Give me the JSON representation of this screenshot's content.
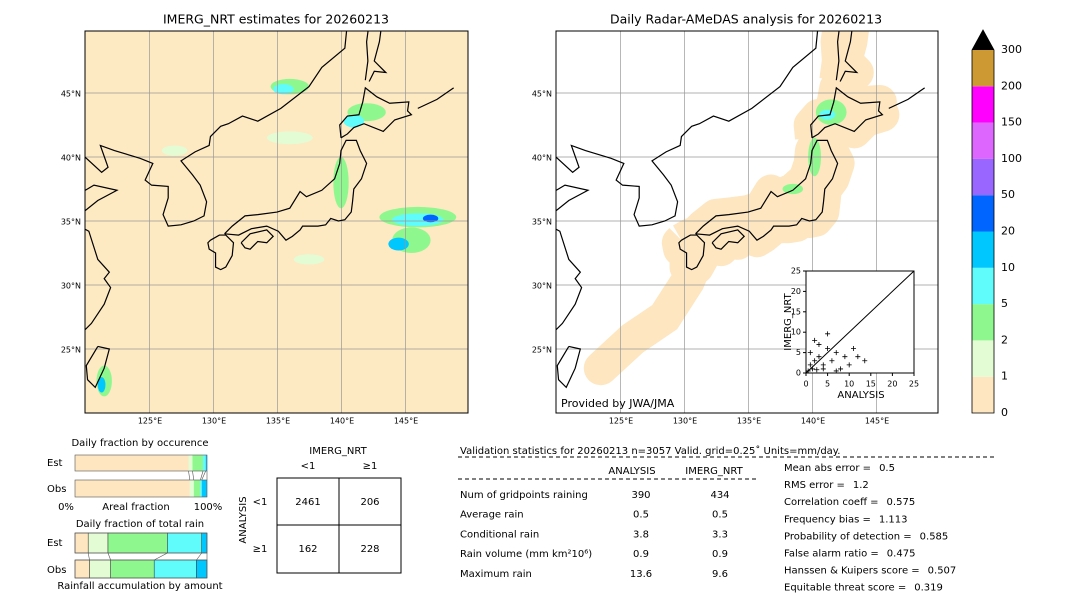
{
  "map_left": {
    "title": "IMERG_NRT estimates for 20260213",
    "lat_labels": [
      "45°N",
      "40°N",
      "35°N",
      "30°N",
      "25°N"
    ],
    "lon_labels": [
      "125°E",
      "130°E",
      "135°E",
      "140°E",
      "145°E"
    ]
  },
  "map_right": {
    "title": "Daily Radar-AMeDAS analysis for 20260213",
    "lat_labels": [
      "45°N",
      "40°N",
      "35°N",
      "30°N",
      "25°N"
    ],
    "lon_labels": [
      "125°E",
      "130°E",
      "135°E",
      "140°E",
      "145°E"
    ],
    "credit": "Provided by JWA/JMA"
  },
  "inset": {
    "type": "scatter",
    "xlabel": "ANALYSIS",
    "ylabel": "IMERG_NRT",
    "xlim": [
      0,
      25
    ],
    "ylim": [
      0,
      25
    ],
    "xticks": [
      0,
      5,
      10,
      15,
      20,
      25
    ],
    "yticks": [
      0,
      5,
      10,
      15,
      20,
      25
    ],
    "x": [
      0.5,
      1,
      1.5,
      2,
      2.5,
      3,
      4,
      5,
      6,
      7,
      8,
      9,
      10,
      11,
      12,
      13.6,
      3,
      5,
      2,
      7,
      1,
      4
    ],
    "y": [
      0.5,
      2,
      1,
      3,
      0.8,
      4,
      2,
      6,
      3,
      5,
      1,
      4,
      2,
      6,
      4,
      3,
      7,
      9.6,
      8,
      0.5,
      5,
      1
    ]
  },
  "colorbar": {
    "levels": [
      0,
      1,
      2,
      5,
      10,
      20,
      50,
      100,
      150,
      200,
      300
    ],
    "colors": [
      "#fde6c0",
      "#e4fcd4",
      "#8ef88e",
      "#60fcfc",
      "#00c8ff",
      "#0064ff",
      "#9966ff",
      "#dd66ff",
      "#ff00ff",
      "#cc9933"
    ]
  },
  "fraction_by_occurrence": {
    "title": "Daily fraction by occurence",
    "row_labels": [
      "Est",
      "Obs"
    ],
    "est": [
      0.86,
      0.03,
      0.08,
      0.02,
      0.01
    ],
    "obs": [
      0.87,
      0.03,
      0.05,
      0.01,
      0.04
    ],
    "axis_left": "0%",
    "axis_label": "Areal fraction",
    "axis_right": "100%"
  },
  "fraction_by_amount": {
    "title": "Daily fraction of total rain",
    "row_labels": [
      "Est",
      "Obs"
    ],
    "est": [
      0.1,
      0.15,
      0.45,
      0.26,
      0.04
    ],
    "obs": [
      0.11,
      0.16,
      0.33,
      0.32,
      0.08
    ],
    "axis_label": "Rainfall accumulation by amount"
  },
  "contingency": {
    "title": "IMERG_NRT",
    "col_labels": [
      "<1",
      "≥1"
    ],
    "row_title": "ANALYSIS",
    "row_labels": [
      "<1",
      "≥1"
    ],
    "cells": [
      [
        2461,
        206
      ],
      [
        162,
        228
      ]
    ]
  },
  "validation": {
    "title": "Validation statistics for 20260213  n=3057 Valid. grid=0.25˚ Units=mm/day.",
    "col_labels": [
      "ANALYSIS",
      "IMERG_NRT"
    ],
    "rows": [
      {
        "label": "Num of gridpoints raining",
        "analysis": 390,
        "imerg": 434
      },
      {
        "label": "Average rain",
        "analysis": 0.5,
        "imerg": 0.5
      },
      {
        "label": "Conditional rain",
        "analysis": 3.8,
        "imerg": 3.3
      },
      {
        "label": "Rain volume (mm km²10⁶)",
        "analysis": 0.9,
        "imerg": 0.9
      },
      {
        "label": "Maximum rain",
        "analysis": 13.6,
        "imerg": 9.6
      }
    ],
    "scores": [
      {
        "label": "Mean abs error =",
        "value": 0.5
      },
      {
        "label": "RMS error =",
        "value": 1.2
      },
      {
        "label": "Correlation coeff =",
        "value": 0.575
      },
      {
        "label": "Frequency bias =",
        "value": 1.113
      },
      {
        "label": "Probability of detection =",
        "value": 0.585
      },
      {
        "label": "False alarm ratio =",
        "value": 0.475
      },
      {
        "label": "Hanssen & Kuipers score =",
        "value": 0.507
      },
      {
        "label": "Equitable threat score =",
        "value": 0.319
      }
    ]
  }
}
